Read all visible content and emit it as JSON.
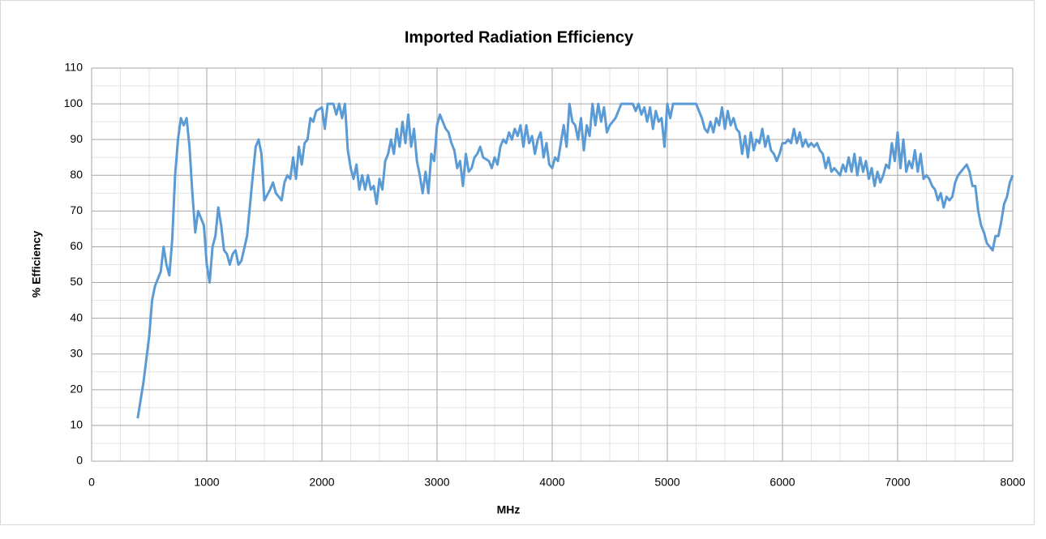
{
  "chart_data": {
    "type": "line",
    "title": "Imported Radiation Efficiency",
    "x_label": "MHz",
    "y_label": "% Efficiency",
    "xlim": [
      0,
      8000
    ],
    "ylim": [
      0,
      110
    ],
    "xticks": [
      0,
      1000,
      2000,
      3000,
      4000,
      5000,
      6000,
      7000,
      8000
    ],
    "yticks": [
      0,
      10,
      20,
      30,
      40,
      50,
      60,
      70,
      80,
      90,
      100,
      110
    ],
    "xminor_ticks": [
      250,
      500,
      750,
      1250,
      1500,
      1750,
      2250,
      2500,
      2750,
      3250,
      3500,
      3750,
      4250,
      4500,
      4750,
      5250,
      5500,
      5750,
      6250,
      6500,
      6750,
      7250,
      7500,
      7750
    ],
    "yminor_ticks": [
      5,
      15,
      25,
      35,
      45,
      55,
      65,
      75,
      85,
      95,
      105
    ],
    "grid": true,
    "series": [
      {
        "name": "Efficiency",
        "color": "#5b9bd5",
        "x": [
          400,
          450,
          500,
          525,
          550,
          600,
          625,
          650,
          675,
          700,
          725,
          750,
          775,
          800,
          825,
          850,
          875,
          900,
          925,
          950,
          975,
          1000,
          1025,
          1050,
          1075,
          1100,
          1125,
          1150,
          1175,
          1200,
          1225,
          1250,
          1275,
          1300,
          1350,
          1400,
          1425,
          1450,
          1475,
          1500,
          1550,
          1575,
          1600,
          1650,
          1675,
          1700,
          1725,
          1750,
          1775,
          1800,
          1825,
          1850,
          1875,
          1900,
          1925,
          1950,
          2000,
          2025,
          2050,
          2100,
          2125,
          2150,
          2175,
          2200,
          2225,
          2250,
          2275,
          2300,
          2325,
          2350,
          2375,
          2400,
          2425,
          2450,
          2475,
          2500,
          2525,
          2550,
          2575,
          2600,
          2625,
          2650,
          2675,
          2700,
          2725,
          2750,
          2775,
          2800,
          2825,
          2850,
          2875,
          2900,
          2925,
          2950,
          2975,
          3000,
          3025,
          3050,
          3075,
          3100,
          3125,
          3150,
          3175,
          3200,
          3225,
          3250,
          3275,
          3300,
          3325,
          3350,
          3375,
          3400,
          3450,
          3475,
          3500,
          3525,
          3550,
          3575,
          3600,
          3625,
          3650,
          3675,
          3700,
          3725,
          3750,
          3775,
          3800,
          3825,
          3850,
          3875,
          3900,
          3925,
          3950,
          3975,
          4000,
          4025,
          4050,
          4075,
          4100,
          4125,
          4150,
          4175,
          4200,
          4225,
          4250,
          4275,
          4300,
          4325,
          4350,
          4375,
          4400,
          4425,
          4450,
          4475,
          4500,
          4550,
          4575,
          4600,
          4650,
          4700,
          4725,
          4750,
          4775,
          4800,
          4825,
          4850,
          4875,
          4900,
          4925,
          4950,
          4975,
          5000,
          5025,
          5050,
          5100,
          5150,
          5200,
          5250,
          5275,
          5300,
          5325,
          5350,
          5375,
          5400,
          5425,
          5450,
          5475,
          5500,
          5525,
          5550,
          5575,
          5600,
          5625,
          5650,
          5675,
          5700,
          5725,
          5750,
          5775,
          5800,
          5825,
          5850,
          5875,
          5900,
          5925,
          5950,
          5975,
          6000,
          6025,
          6050,
          6075,
          6100,
          6125,
          6150,
          6175,
          6200,
          6225,
          6250,
          6275,
          6300,
          6325,
          6350,
          6375,
          6400,
          6425,
          6450,
          6475,
          6500,
          6525,
          6550,
          6575,
          6600,
          6625,
          6650,
          6675,
          6700,
          6725,
          6750,
          6775,
          6800,
          6825,
          6850,
          6875,
          6900,
          6925,
          6950,
          6975,
          7000,
          7025,
          7050,
          7075,
          7100,
          7125,
          7150,
          7175,
          7200,
          7225,
          7250,
          7275,
          7300,
          7325,
          7350,
          7375,
          7400,
          7425,
          7450,
          7475,
          7500,
          7525,
          7550,
          7575,
          7600,
          7625,
          7650,
          7675,
          7700,
          7725,
          7750,
          7775,
          7800,
          7825,
          7850,
          7875,
          7900,
          7925,
          7950,
          7975,
          8000
        ],
        "values": [
          12,
          22,
          35,
          45,
          49,
          53,
          60,
          55,
          52,
          62,
          80,
          90,
          96,
          94,
          96,
          88,
          75,
          64,
          70,
          68,
          66,
          55,
          50,
          60,
          63,
          71,
          66,
          59,
          58,
          55,
          58,
          59,
          55,
          56,
          63,
          80,
          88,
          90,
          86,
          73,
          76,
          78,
          75,
          73,
          78,
          80,
          79,
          85,
          79,
          88,
          83,
          89,
          90,
          96,
          95,
          98,
          99,
          93,
          100,
          100,
          97,
          100,
          96,
          100,
          87,
          82,
          79,
          83,
          76,
          80,
          76,
          80,
          76,
          77,
          72,
          79,
          76,
          84,
          86,
          90,
          86,
          93,
          88,
          95,
          89,
          97,
          88,
          93,
          84,
          80,
          75,
          81,
          75,
          86,
          84,
          94,
          97,
          95,
          93,
          92,
          89,
          87,
          82,
          84,
          77,
          86,
          81,
          82,
          85,
          86,
          88,
          85,
          84,
          82,
          85,
          83,
          88,
          90,
          89,
          92,
          90,
          93,
          91,
          94,
          88,
          94,
          89,
          91,
          86,
          90,
          92,
          85,
          89,
          83,
          82,
          85,
          84,
          89,
          94,
          88,
          100,
          95,
          94,
          90,
          96,
          87,
          94,
          91,
          100,
          94,
          100,
          95,
          99,
          92,
          94,
          96,
          98,
          100,
          100,
          100,
          98,
          100,
          97,
          99,
          95,
          99,
          93,
          98,
          95,
          96,
          88,
          100,
          96,
          100,
          100,
          100,
          100,
          100,
          98,
          96,
          93,
          92,
          95,
          92,
          96,
          94,
          99,
          93,
          98,
          94,
          96,
          93,
          92,
          86,
          91,
          85,
          92,
          87,
          90,
          89,
          93,
          88,
          91,
          87,
          86,
          84,
          86,
          89,
          89,
          90,
          89,
          93,
          89,
          92,
          88,
          90,
          88,
          89,
          88,
          89,
          87,
          86,
          82,
          85,
          81,
          82,
          81,
          80,
          83,
          81,
          85,
          81,
          86,
          80,
          85,
          81,
          84,
          79,
          82,
          77,
          81,
          78,
          80,
          83,
          82,
          89,
          84,
          92,
          82,
          90,
          81,
          84,
          82,
          87,
          81,
          86,
          79,
          80,
          79,
          77,
          76,
          73,
          75,
          71,
          74,
          73,
          74,
          78,
          80,
          81,
          82,
          83,
          81,
          77,
          77,
          70,
          66,
          64,
          61,
          60,
          59,
          63,
          63,
          67,
          72,
          74,
          78,
          80
        ]
      }
    ]
  }
}
